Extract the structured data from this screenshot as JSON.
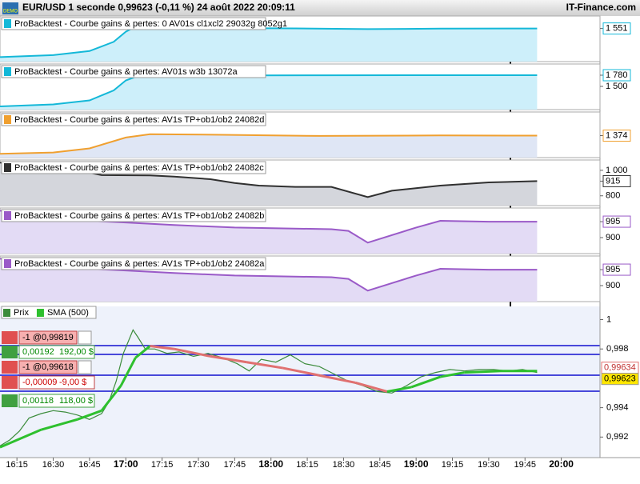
{
  "header": {
    "title": "EUR/USD 1 seconde 0,99623 (-0,11 %) 24 août 2022 20:09:11",
    "brand": "IT-Finance.com",
    "badge": "DEMO"
  },
  "chart_data": [
    {
      "type": "area",
      "title": "ProBacktest - Courbe gains & pertes: 0  AV01s cl1xcl2 29032g 8052g1",
      "color": "#14b8d8",
      "fill": "#cdeffa",
      "ylim": [
        1250,
        1650
      ],
      "yticks": [
        {
          "value": 1551,
          "label": "1 551"
        }
      ],
      "x": [
        968,
        990,
        1005,
        1015,
        1020,
        1025,
        1035,
        1060,
        1090,
        1120,
        1150,
        1180,
        1190
      ],
      "values": [
        1270,
        1290,
        1330,
        1420,
        1520,
        1580,
        1560,
        1555,
        1552,
        1545,
        1550,
        1551,
        1551
      ]
    },
    {
      "type": "area",
      "title": "ProBacktest - Courbe gains & pertes: AV01s w3b 13072a",
      "color": "#14b8d8",
      "fill": "#cdeffa",
      "ylim": [
        980,
        2000
      ],
      "yticks": [
        {
          "value": 1780,
          "label": "1 780"
        },
        {
          "value": 1500,
          "label": "1 500"
        }
      ],
      "x": [
        968,
        990,
        1005,
        1015,
        1020,
        1025,
        1040,
        1070,
        1100,
        1140,
        1190
      ],
      "values": [
        1000,
        1050,
        1150,
        1400,
        1650,
        1760,
        1770,
        1775,
        1778,
        1780,
        1780
      ]
    },
    {
      "type": "area",
      "title": "ProBacktest - Courbe gains & pertes: AV1s TP+ob1/ob2 24082d",
      "color": "#f0a030",
      "fill": "#dfe6f5",
      "ylim": [
        1230,
        1530
      ],
      "yticks": [
        {
          "value": 1374,
          "label": "1 374"
        }
      ],
      "x": [
        968,
        990,
        1005,
        1020,
        1030,
        1060,
        1100,
        1150,
        1190
      ],
      "values": [
        1240,
        1250,
        1280,
        1360,
        1385,
        1380,
        1372,
        1375,
        1374
      ]
    },
    {
      "type": "area",
      "title": "ProBacktest - Courbe gains & pertes: AV1s TP+ob1/ob2 24082c",
      "color": "#303030",
      "fill": "#d4d6dc",
      "ylim": [
        742,
        1062
      ],
      "yticks": [
        {
          "value": 1000,
          "label": "1 000"
        },
        915,
        800
      ],
      "x": [
        968,
        1000,
        1010,
        1030,
        1040,
        1055,
        1065,
        1075,
        1090,
        1105,
        1120,
        1130,
        1150,
        1170,
        1190
      ],
      "values": [
        1060,
        1000,
        962,
        960,
        950,
        930,
        900,
        880,
        870,
        870,
        790,
        840,
        880,
        905,
        915
      ]
    },
    {
      "type": "area",
      "title": "ProBacktest - Courbe gains & pertes: AV1s TP+ob1/ob2 24082b",
      "color": "#9a5ac8",
      "fill": "#e3dbf5",
      "ylim": [
        819,
        1062
      ],
      "yticks": [
        995,
        900
      ],
      "x": [
        968,
        1005,
        1020,
        1040,
        1065,
        1105,
        1112,
        1120,
        1140,
        1150,
        1170,
        1190
      ],
      "values": [
        1060,
        1000,
        990,
        975,
        960,
        950,
        940,
        870,
        960,
        1000,
        995,
        995
      ]
    },
    {
      "type": "area",
      "title": "ProBacktest - Courbe gains & pertes: AV1s TP+ob1/ob2 24082a",
      "color": "#9a5ac8",
      "fill": "#e3dbf5",
      "ylim": [
        819,
        1062
      ],
      "yticks": [
        995,
        900
      ],
      "x": [
        968,
        1005,
        1020,
        1040,
        1065,
        1105,
        1112,
        1120,
        1140,
        1150,
        1170,
        1190
      ],
      "values": [
        1060,
        1000,
        990,
        975,
        960,
        950,
        940,
        870,
        960,
        1000,
        995,
        995
      ]
    },
    {
      "type": "line",
      "xlim": [
        968,
        1216
      ],
      "ylim": [
        0.9906,
        1.0009
      ],
      "xticks": [
        {
          "value": 975,
          "label": "16:15"
        },
        {
          "value": 990,
          "label": "16:30"
        },
        {
          "value": 1005,
          "label": "16:45"
        },
        {
          "value": 1020,
          "label": "17:00"
        },
        {
          "value": 1035,
          "label": "17:15"
        },
        {
          "value": 1050,
          "label": "17:30"
        },
        {
          "value": 1065,
          "label": "17:45"
        },
        {
          "value": 1080,
          "label": "18:00"
        },
        {
          "value": 1095,
          "label": "18:15"
        },
        {
          "value": 1110,
          "label": "18:30"
        },
        {
          "value": 1125,
          "label": "18:45"
        },
        {
          "value": 1140,
          "label": "19:00"
        },
        {
          "value": 1155,
          "label": "19:15"
        },
        {
          "value": 1170,
          "label": "19:30"
        },
        {
          "value": 1185,
          "label": "19:45"
        },
        {
          "value": 1200,
          "label": "20:00"
        }
      ],
      "yticks": [
        1,
        {
          "value": 0.998,
          "label": "0,998"
        },
        {
          "value": 0.994,
          "label": "0,994"
        },
        {
          "value": 0.992,
          "label": "0,992"
        }
      ],
      "price_labels": [
        {
          "value": 0.99634,
          "label": "0,99634"
        },
        {
          "value": 0.99623,
          "label": "0,99623"
        }
      ],
      "series": [
        {
          "name": "Prix",
          "color": "#3c8c3c",
          "x": [
            968,
            972,
            976,
            980,
            985,
            990,
            995,
            1000,
            1005,
            1010,
            1013,
            1016,
            1019,
            1021,
            1023,
            1025,
            1028,
            1032,
            1037,
            1042,
            1048,
            1054,
            1060,
            1066,
            1071,
            1076,
            1082,
            1088,
            1094,
            1100,
            1106,
            1112,
            1118,
            1124,
            1130,
            1136,
            1142,
            1148,
            1154,
            1160,
            1166,
            1172,
            1178,
            1184,
            1190
          ],
          "values": [
            0.9914,
            0.9918,
            0.9924,
            0.9933,
            0.9936,
            0.9938,
            0.9937,
            0.9935,
            0.9932,
            0.9936,
            0.9944,
            0.9958,
            0.9977,
            0.9985,
            0.9993,
            0.9988,
            0.998,
            0.998,
            0.9977,
            0.9978,
            0.9975,
            0.9977,
            0.9974,
            0.997,
            0.9965,
            0.9973,
            0.9971,
            0.9976,
            0.997,
            0.9968,
            0.9963,
            0.9958,
            0.9955,
            0.9951,
            0.995,
            0.9955,
            0.9961,
            0.9964,
            0.9966,
            0.9965,
            0.9966,
            0.9966,
            0.9965,
            0.9966,
            0.9964
          ]
        },
        {
          "name": "SMA (500)",
          "color": "#2ec02e",
          "down_color": "#e07070",
          "x": [
            968,
            985,
            1000,
            1010,
            1018,
            1024,
            1030,
            1040,
            1055,
            1070,
            1085,
            1100,
            1115,
            1128,
            1138,
            1150,
            1160,
            1175,
            1190
          ],
          "values": [
            0.9913,
            0.9925,
            0.9932,
            0.9938,
            0.9955,
            0.9974,
            0.9982,
            0.998,
            0.9975,
            0.9971,
            0.9967,
            0.9962,
            0.9957,
            0.9951,
            0.9954,
            0.9961,
            0.9964,
            0.9965,
            0.9965
          ]
        }
      ]
    }
  ],
  "orders": [
    {
      "label": "-1 @0,99819"
    },
    {
      "points": "0,00192",
      "amount": "192,00 $"
    },
    {
      "label": "-1 @0,99618"
    },
    {
      "points": "-0,00009",
      "amount": "-9,00 $"
    },
    {
      "points": "0,00118",
      "amount": "118,00 $"
    }
  ]
}
